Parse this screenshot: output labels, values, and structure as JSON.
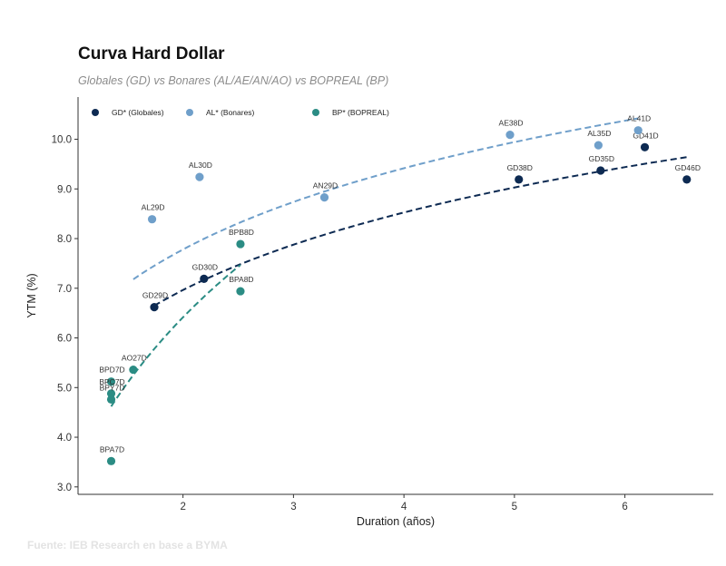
{
  "chart_data": {
    "type": "scatter",
    "title": "Curva Hard Dollar",
    "subtitle": "Globales (GD) vs Bonares (AL/AE/AN/AO) vs BOPREAL (BP)",
    "xlabel": "Duration (años)",
    "ylabel": "YTM (%)",
    "xlim": [
      1.05,
      6.8
    ],
    "ylim": [
      2.85,
      10.85
    ],
    "xticks": [
      2,
      3,
      4,
      5,
      6
    ],
    "yticks": [
      3.0,
      4.0,
      5.0,
      6.0,
      7.0,
      8.0,
      9.0,
      10.0
    ],
    "grid": false,
    "legend_position": "top-left",
    "source": "Fuente: IEB Research en base a BYMA",
    "series": [
      {
        "name": "GD* (Globales)",
        "color": "#0d2a52",
        "points": [
          {
            "label": "GD29D",
            "x": 1.74,
            "y": 6.62
          },
          {
            "label": "GD30D",
            "x": 2.19,
            "y": 7.19
          },
          {
            "label": "GD38D",
            "x": 5.04,
            "y": 9.19
          },
          {
            "label": "GD35D",
            "x": 5.78,
            "y": 9.37
          },
          {
            "label": "GD41D",
            "x": 6.18,
            "y": 9.84
          },
          {
            "label": "GD46D",
            "x": 6.56,
            "y": 9.19
          }
        ],
        "trend": {
          "x_start": 1.74,
          "x_end": 6.56,
          "y_start": 6.65,
          "y_end": 9.64
        }
      },
      {
        "name": "AL* (Bonares)",
        "color": "#6f9fca",
        "points": [
          {
            "label": "AL29D",
            "x": 1.72,
            "y": 8.39
          },
          {
            "label": "AL30D",
            "x": 2.15,
            "y": 9.24
          },
          {
            "label": "AN29D",
            "x": 3.28,
            "y": 8.83
          },
          {
            "label": "AE38D",
            "x": 4.96,
            "y": 10.09
          },
          {
            "label": "AL35D",
            "x": 5.76,
            "y": 9.88
          },
          {
            "label": "AL41D",
            "x": 6.12,
            "y": 10.18
          }
        ],
        "trend": {
          "x_start": 1.55,
          "x_end": 6.12,
          "y_start": 7.18,
          "y_end": 10.42
        }
      },
      {
        "name": "BP* (BOPREAL)",
        "color": "#2b8c84",
        "points": [
          {
            "label": "BPD7D",
            "x": 1.35,
            "y": 5.12
          },
          {
            "label": "BPC7D",
            "x": 1.35,
            "y": 4.88
          },
          {
            "label": "BPY7D",
            "x": 1.35,
            "y": 4.76
          },
          {
            "label": "BPA7D",
            "x": 1.35,
            "y": 3.52
          },
          {
            "label": "AO27D",
            "x": 1.55,
            "y": 5.36
          },
          {
            "label": "BPB8D",
            "x": 2.52,
            "y": 7.89
          },
          {
            "label": "BPA8D",
            "x": 2.52,
            "y": 6.94
          }
        ],
        "trend": {
          "x_start": 1.35,
          "x_end": 2.52,
          "y_start": 4.62,
          "y_end": 7.47
        }
      }
    ]
  }
}
